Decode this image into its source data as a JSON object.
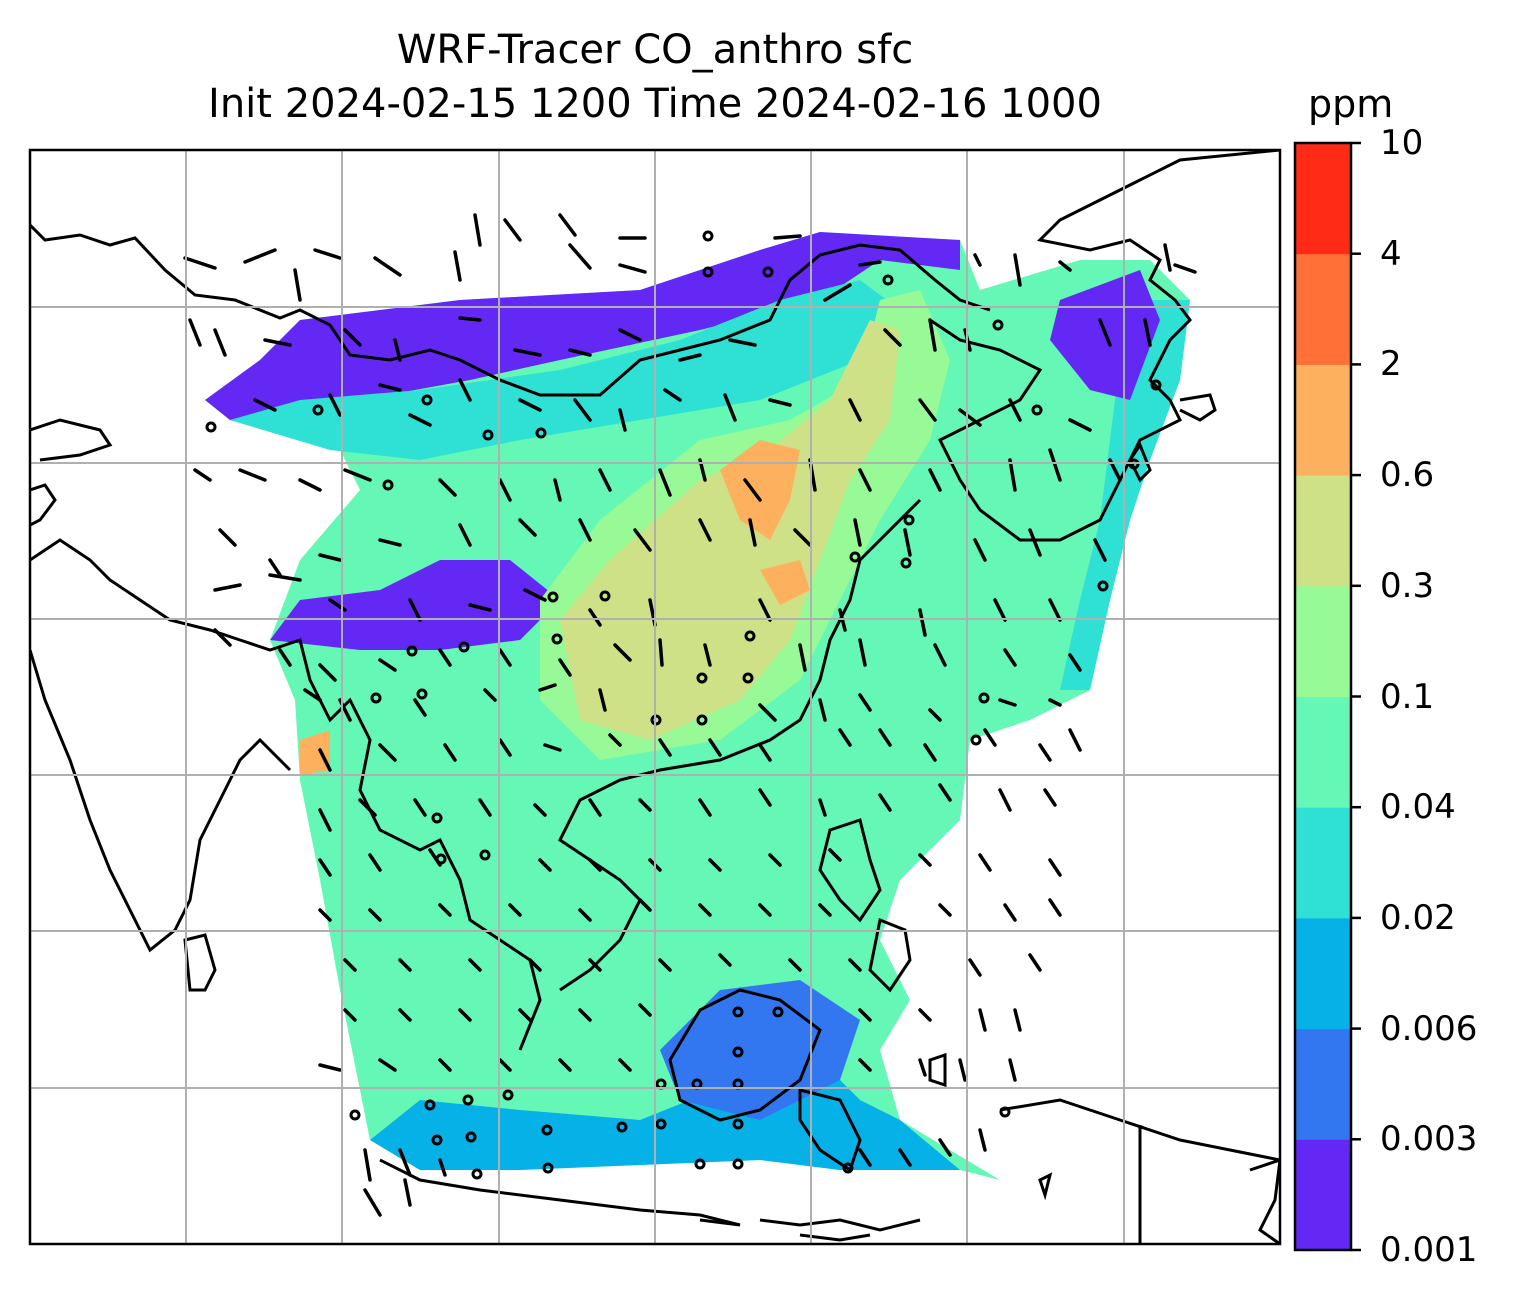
{
  "title": {
    "line1": "WRF-Tracer CO_anthro sfc",
    "line2": "Init 2024-02-15 1200 Time 2024-02-16 1000"
  },
  "colorbar": {
    "unit": "ppm",
    "levels": [
      "0.001",
      "0.003",
      "0.006",
      "0.02",
      "0.04",
      "0.1",
      "0.3",
      "0.6",
      "2",
      "4",
      "10"
    ],
    "colors": [
      "#6428f5",
      "#3377f0",
      "#06b1e8",
      "#2fe0d4",
      "#65f7b6",
      "#98fa96",
      "#cfe186",
      "#fdb05e",
      "#ff7137",
      "#ff2b17"
    ]
  },
  "map": {
    "gridlines": true,
    "overlay": "wind barbs",
    "background": "#ffffff",
    "coastline_color": "#000000",
    "gridline_color": "#b0b0b0"
  }
}
